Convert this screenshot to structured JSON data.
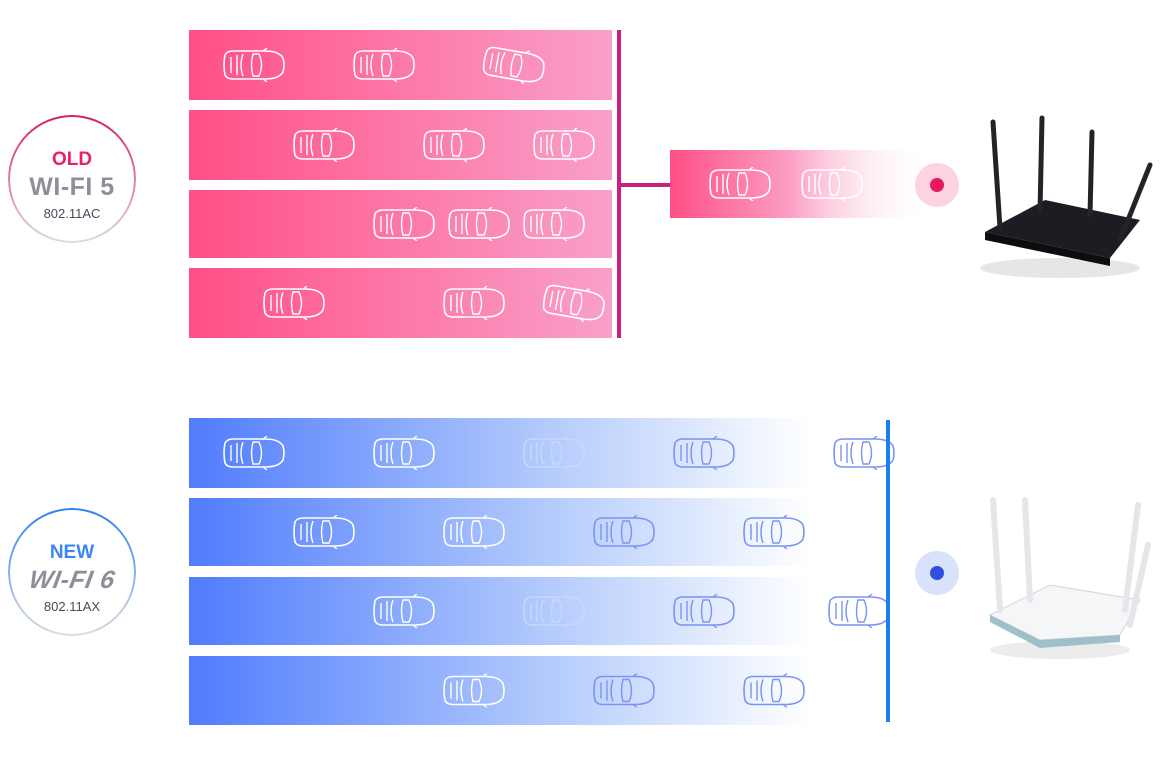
{
  "old": {
    "tag": "OLD",
    "name": "WI-FI 5",
    "standard": "802.11AC",
    "accent": "#e8185f",
    "lane_color_start": "#ff4f86",
    "lane_color_end": "#f9a0c9",
    "bus_color": "#c8207f"
  },
  "new": {
    "tag": "NEW",
    "name": "WI-FI 6",
    "standard": "802.11AX",
    "accent": "#2f7cf0",
    "lane_color_start": "#507cfd",
    "lane_color_end": "#ffffff",
    "bus_color": "#1a7ff0"
  },
  "icons": {
    "car": "car-outline-icon",
    "old_router": "black-router-icon",
    "new_router": "white-router-icon",
    "signal_dot": "signal-dot-icon"
  }
}
